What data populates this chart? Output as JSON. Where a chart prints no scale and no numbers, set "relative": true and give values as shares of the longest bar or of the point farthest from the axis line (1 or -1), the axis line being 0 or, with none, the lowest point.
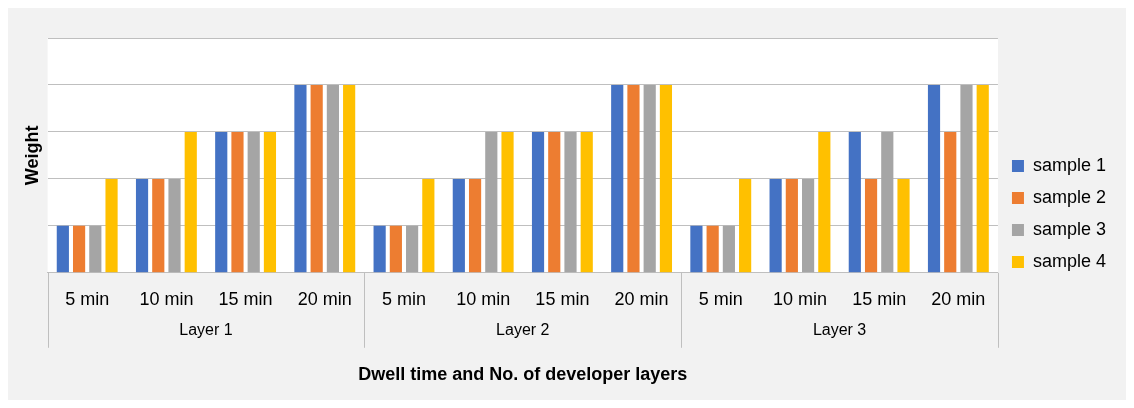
{
  "chart_data": {
    "type": "bar",
    "relative": true,
    "xlabel": "Dwell time and No. of developer layers",
    "ylabel": "Weight",
    "categories": [
      "5 min",
      "10 min",
      "15 min",
      "20 min",
      "5 min",
      "10 min",
      "15 min",
      "20 min",
      "5 min",
      "10 min",
      "15 min",
      "20 min"
    ],
    "annotations": [
      "Layer 1",
      "Layer 2",
      "Layer 3"
    ],
    "series": [
      {
        "name": "sample 1",
        "color": "#4472c4",
        "values": [
          0.25,
          0.5,
          0.75,
          1,
          0.25,
          0.5,
          0.75,
          1,
          0.25,
          0.5,
          0.75,
          1
        ]
      },
      {
        "name": "sample 2",
        "color": "#ed7d31",
        "values": [
          0.25,
          0.5,
          0.75,
          1,
          0.25,
          0.5,
          0.75,
          1,
          0.25,
          0.5,
          0.5,
          0.75
        ]
      },
      {
        "name": "sample 3",
        "color": "#a5a5a5",
        "values": [
          0.25,
          0.5,
          0.75,
          1,
          0.25,
          0.75,
          0.75,
          1,
          0.25,
          0.5,
          0.75,
          1
        ]
      },
      {
        "name": "sample 4",
        "color": "#ffc000",
        "values": [
          0.5,
          0.75,
          0.75,
          1,
          0.5,
          0.75,
          0.75,
          1,
          0.5,
          0.75,
          0.5,
          1
        ]
      }
    ],
    "grid": "y",
    "legend": "right"
  }
}
